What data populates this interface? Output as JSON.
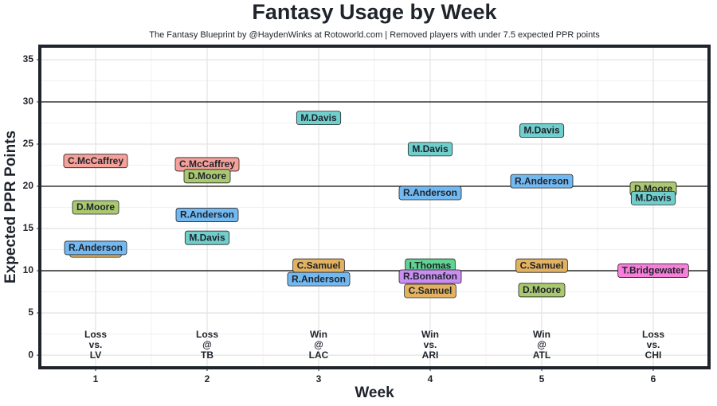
{
  "chart_data": {
    "type": "label_scatter",
    "title": "Fantasy Usage by Week",
    "subtitle": "The Fantasy Blueprint by @HaydenWinks at Rotoworld.com | Removed players with under 7.5 expected PPR points",
    "x_label": "Week",
    "y_label": "Expected PPR Points",
    "xlim": [
      0.5,
      6.5
    ],
    "ylim": [
      -1.5,
      36.6
    ],
    "xticks": [
      1,
      2,
      3,
      4,
      5,
      6
    ],
    "yticks": [
      0,
      5,
      10,
      15,
      20,
      25,
      30,
      35
    ],
    "reference_lines": [
      10,
      20,
      30
    ],
    "grid": true,
    "games": [
      [
        "Loss",
        "vs.",
        "LV"
      ],
      [
        "Loss",
        "@",
        "TB"
      ],
      [
        "Win",
        "@",
        "LAC"
      ],
      [
        "Win",
        "vs.",
        "ARI"
      ],
      [
        "Win",
        "@",
        "ATL"
      ],
      [
        "Loss",
        "vs.",
        "CHI"
      ]
    ],
    "points": [
      {
        "label": "C.Samuel",
        "x": 1,
        "y": 12.4,
        "color": "#e3b261"
      },
      {
        "label": "C.McCaffrey",
        "x": 1,
        "y": 23.0,
        "color": "#f5a099"
      },
      {
        "label": "D.Moore",
        "x": 1,
        "y": 17.5,
        "color": "#a9c86f"
      },
      {
        "label": "R.Anderson",
        "x": 1,
        "y": 12.7,
        "color": "#72b9f2"
      },
      {
        "label": "C.McCaffrey",
        "x": 2,
        "y": 22.6,
        "color": "#f5a099"
      },
      {
        "label": "D.Moore",
        "x": 2,
        "y": 21.2,
        "color": "#a9c86f"
      },
      {
        "label": "R.Anderson",
        "x": 2,
        "y": 16.6,
        "color": "#72b9f2"
      },
      {
        "label": "M.Davis",
        "x": 2,
        "y": 13.9,
        "color": "#6fcfcc"
      },
      {
        "label": "M.Davis",
        "x": 3,
        "y": 28.1,
        "color": "#6fcfcc"
      },
      {
        "label": "C.Samuel",
        "x": 3,
        "y": 10.6,
        "color": "#e3b261"
      },
      {
        "label": "R.Anderson",
        "x": 3,
        "y": 9.0,
        "color": "#72b9f2"
      },
      {
        "label": "M.Davis",
        "x": 4,
        "y": 24.4,
        "color": "#6fcfcc"
      },
      {
        "label": "R.Anderson",
        "x": 4,
        "y": 19.2,
        "color": "#72b9f2"
      },
      {
        "label": "I.Thomas",
        "x": 4,
        "y": 10.6,
        "color": "#5fd38f"
      },
      {
        "label": "R.Bonnafon",
        "x": 4,
        "y": 9.3,
        "color": "#c98ef1"
      },
      {
        "label": "C.Samuel",
        "x": 4,
        "y": 7.6,
        "color": "#e3b261"
      },
      {
        "label": "M.Davis",
        "x": 5,
        "y": 26.6,
        "color": "#6fcfcc"
      },
      {
        "label": "R.Anderson",
        "x": 5,
        "y": 20.6,
        "color": "#72b9f2"
      },
      {
        "label": "C.Samuel",
        "x": 5,
        "y": 10.6,
        "color": "#e3b261"
      },
      {
        "label": "D.Moore",
        "x": 5,
        "y": 7.7,
        "color": "#a9c86f"
      },
      {
        "label": "D.Moore",
        "x": 6,
        "y": 19.7,
        "color": "#a9c86f"
      },
      {
        "label": "M.Davis",
        "x": 6,
        "y": 18.6,
        "color": "#6fcfcc"
      },
      {
        "label": "T.Bridgewater",
        "x": 6,
        "y": 10.0,
        "color": "#f77fd9"
      }
    ]
  }
}
